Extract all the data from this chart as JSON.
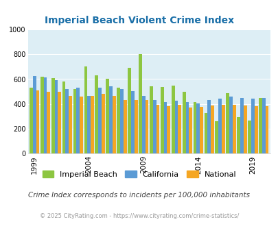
{
  "title": "Imperial Beach Violent Crime Index",
  "subtitle": "Crime Index corresponds to incidents per 100,000 inhabitants",
  "footer": "© 2025 CityRating.com - https://www.cityrating.com/crime-statistics/",
  "years": [
    1999,
    2000,
    2001,
    2002,
    2003,
    2004,
    2005,
    2006,
    2007,
    2008,
    2009,
    2010,
    2011,
    2012,
    2013,
    2014,
    2015,
    2016,
    2017,
    2018,
    2019,
    2020
  ],
  "imperial_beach": [
    530,
    620,
    610,
    580,
    520,
    700,
    630,
    605,
    530,
    690,
    800,
    540,
    535,
    550,
    500,
    415,
    325,
    260,
    485,
    295,
    265,
    450
  ],
  "california": [
    625,
    615,
    590,
    520,
    530,
    465,
    530,
    540,
    520,
    505,
    465,
    430,
    415,
    425,
    415,
    405,
    430,
    445,
    460,
    450,
    445,
    450
  ],
  "national": [
    510,
    500,
    500,
    465,
    460,
    465,
    480,
    465,
    430,
    430,
    430,
    395,
    385,
    395,
    370,
    375,
    390,
    395,
    395,
    390,
    380,
    385
  ],
  "bar_colors": {
    "imperial_beach": "#8dc641",
    "california": "#5b9bd5",
    "national": "#f5a623"
  },
  "bg_color": "#ddeef5",
  "ylim": [
    0,
    1000
  ],
  "yticks": [
    0,
    200,
    400,
    600,
    800,
    1000
  ],
  "xtick_years": [
    1999,
    2004,
    2009,
    2014,
    2019
  ],
  "title_color": "#1a6fa8",
  "subtitle_color": "#444444",
  "footer_color": "#999999"
}
